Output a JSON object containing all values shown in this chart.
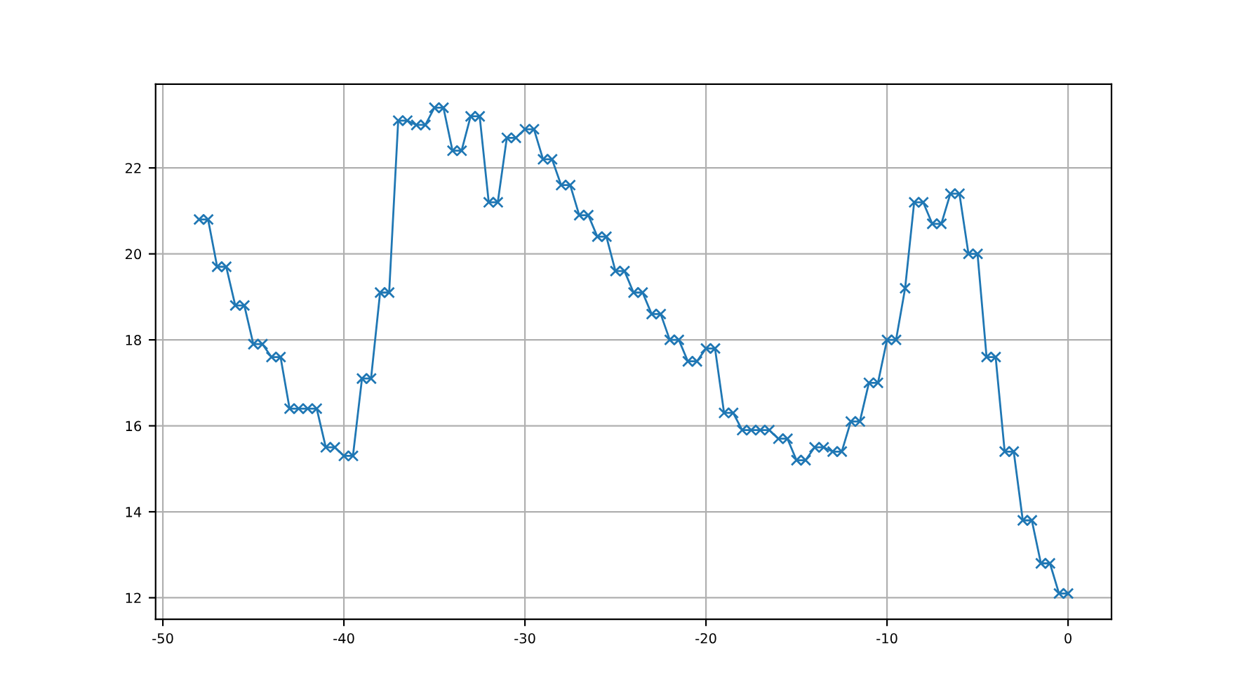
{
  "chart_data": {
    "type": "line",
    "marker": "cross",
    "grid": true,
    "x": [
      -48,
      -47.5,
      -47,
      -46.5,
      -46,
      -45.5,
      -45,
      -44.5,
      -44,
      -43.5,
      -43,
      -42.5,
      -42,
      -41.5,
      -41,
      -40.5,
      -40,
      -39.5,
      -39,
      -38.5,
      -38,
      -37.5,
      -37,
      -36.5,
      -36,
      -35.5,
      -35,
      -34.5,
      -34,
      -33.5,
      -33,
      -32.5,
      -32,
      -31.5,
      -31,
      -30.5,
      -30,
      -29.5,
      -29,
      -28.5,
      -28,
      -27.5,
      -27,
      -26.5,
      -26,
      -25.5,
      -25,
      -24.5,
      -24,
      -23.5,
      -23,
      -22.5,
      -22,
      -21.5,
      -21,
      -20.5,
      -20,
      -19.5,
      -19,
      -18.5,
      -18,
      -17.5,
      -17,
      -16.5,
      -16,
      -15.5,
      -15,
      -14.5,
      -14,
      -13.5,
      -13,
      -12.5,
      -12,
      -11.5,
      -11,
      -10.5,
      -10,
      -9.5,
      -9,
      -8.5,
      -8,
      -7.5,
      -7,
      -6.5,
      -6,
      -5.5,
      -5,
      -4.5,
      -4,
      -3.5,
      -3,
      -2.5,
      -2,
      -1.5,
      -1,
      -0.5,
      0
    ],
    "series": [
      {
        "color": "#1f77b4",
        "values": [
          20.8,
          20.8,
          19.7,
          19.7,
          18.8,
          18.8,
          17.9,
          17.9,
          17.6,
          17.6,
          16.4,
          16.4,
          16.4,
          16.4,
          15.5,
          15.5,
          15.3,
          15.3,
          17.1,
          17.1,
          19.1,
          19.1,
          23.1,
          23.1,
          23.0,
          23.0,
          23.4,
          23.4,
          22.4,
          22.4,
          23.2,
          23.2,
          21.2,
          21.2,
          22.7,
          22.7,
          22.9,
          22.9,
          22.2,
          22.2,
          21.6,
          21.6,
          20.9,
          20.9,
          20.4,
          20.4,
          19.6,
          19.6,
          19.1,
          19.1,
          18.6,
          18.6,
          18.0,
          18.0,
          17.5,
          17.5,
          17.8,
          17.8,
          16.3,
          16.3,
          15.9,
          15.9,
          15.9,
          15.9,
          15.7,
          15.7,
          15.2,
          15.2,
          15.5,
          15.5,
          15.4,
          15.4,
          16.1,
          16.1,
          17.0,
          17.0,
          18.0,
          18.0,
          19.2,
          21.2,
          21.2,
          20.7,
          20.7,
          21.4,
          21.4,
          20.0,
          20.0,
          17.6,
          17.6,
          15.4,
          15.4,
          13.8,
          13.8,
          12.8,
          12.8,
          12.1,
          12.1
        ]
      }
    ],
    "xlim": [
      -50.4,
      2.4
    ],
    "ylim": [
      11.5,
      23.95
    ],
    "xticks": [
      -50,
      -40,
      -30,
      -20,
      -10,
      0
    ],
    "yticks": [
      12,
      14,
      16,
      18,
      20,
      22
    ]
  }
}
